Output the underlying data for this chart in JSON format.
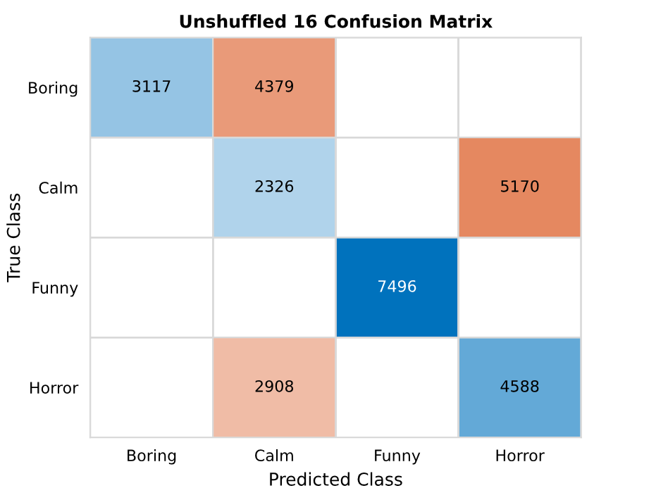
{
  "chart_data": {
    "type": "heatmap",
    "title": "Unshuffled 16 Confusion Matrix",
    "xlabel": "Predicted Class",
    "ylabel": "True Class",
    "categories": [
      "Boring",
      "Calm",
      "Funny",
      "Horror"
    ],
    "y_categories": [
      "Boring",
      "Calm",
      "Funny",
      "Horror"
    ],
    "cells": [
      [
        3117,
        4379,
        null,
        null
      ],
      [
        null,
        2326,
        null,
        5170
      ],
      [
        null,
        null,
        7496,
        null
      ],
      [
        null,
        2908,
        null,
        4588
      ]
    ],
    "data_labels": true
  }
}
